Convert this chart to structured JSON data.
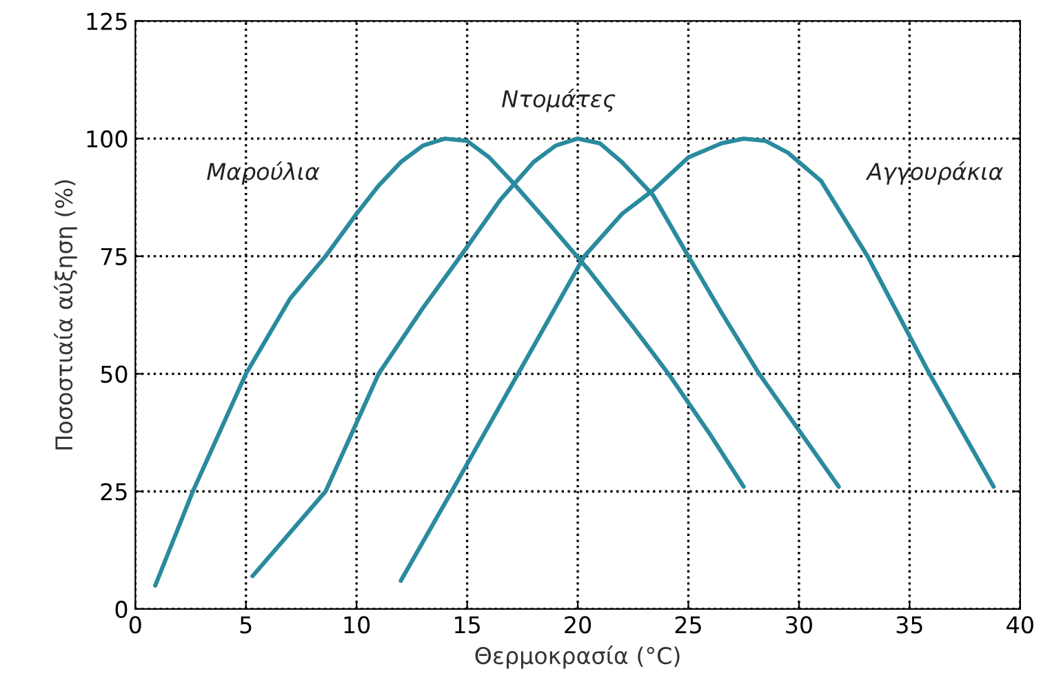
{
  "chart_data": {
    "type": "line",
    "xlabel": "Θερμοκρασία (°C)",
    "ylabel": "Ποσοστιαία αύξηση (%)",
    "xlim": [
      0,
      40
    ],
    "ylim": [
      0,
      125
    ],
    "xticks": [
      0,
      5,
      10,
      15,
      20,
      25,
      30,
      35,
      40
    ],
    "yticks": [
      0,
      25,
      50,
      75,
      100,
      125
    ],
    "grid": true,
    "line_style": "solid",
    "marker": "none",
    "series": [
      {
        "name": "Μαρούλια",
        "color": "#2a8a9e",
        "x": [
          0.9,
          2.6,
          5,
          7,
          8.6,
          10,
          11,
          12,
          13,
          14,
          15,
          16,
          17,
          18.5,
          20.5,
          22.5,
          24.1,
          26,
          27.5
        ],
        "values": [
          5,
          25,
          50,
          66,
          75,
          84,
          90,
          95,
          98.5,
          100,
          99.5,
          96,
          91,
          83,
          72,
          60,
          50,
          37,
          26
        ]
      },
      {
        "name": "Ντομάτες",
        "color": "#2a8a9e",
        "x": [
          5.3,
          8.6,
          11,
          13,
          14.7,
          16.5,
          18,
          19,
          20,
          21,
          22,
          23.4,
          25,
          26.5,
          28.2,
          30,
          31.8
        ],
        "values": [
          7,
          25,
          50,
          64,
          75,
          87,
          95,
          98.5,
          100,
          99,
          95,
          88,
          75,
          63,
          50,
          38,
          26
        ]
      },
      {
        "name": "Αγγουράκια",
        "color": "#2a8a9e",
        "x": [
          12,
          14.3,
          17.3,
          20.3,
          22,
          23.4,
          25,
          26.5,
          27.5,
          28.5,
          29.5,
          31,
          33.1,
          35.9,
          38.8
        ],
        "values": [
          6,
          25,
          50,
          75,
          84,
          89,
          96,
          99,
          100,
          99.5,
          97,
          91,
          75,
          50,
          26
        ]
      }
    ]
  }
}
